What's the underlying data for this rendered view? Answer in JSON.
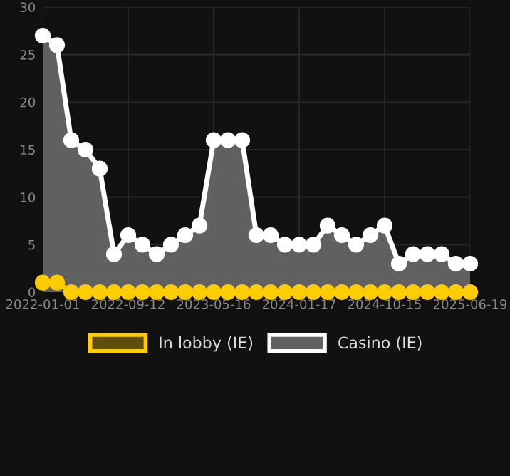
{
  "chart_data": {
    "type": "area",
    "categories": [
      "2022-01-01",
      null,
      null,
      null,
      null,
      null,
      "2022-09-12",
      null,
      null,
      null,
      null,
      null,
      "2023-05-16",
      null,
      null,
      null,
      null,
      null,
      "2024-01-17",
      null,
      null,
      null,
      null,
      null,
      "2024-10-15",
      null,
      null,
      null,
      null,
      null,
      "2025-06-19"
    ],
    "series": [
      {
        "name": "In lobby (IE)",
        "color": "#ffcc00",
        "values": [
          1,
          1,
          0,
          0,
          0,
          0,
          0,
          0,
          0,
          0,
          0,
          0,
          0,
          0,
          0,
          0,
          0,
          0,
          0,
          0,
          0,
          0,
          0,
          0,
          0,
          0,
          0,
          0,
          0,
          0,
          0
        ]
      },
      {
        "name": "Casino (IE)",
        "color": "#ffffff",
        "values": [
          27,
          26,
          16,
          15,
          13,
          4,
          6,
          5,
          4,
          5,
          6,
          7,
          16,
          16,
          16,
          6,
          6,
          5,
          5,
          5,
          7,
          6,
          5,
          6,
          7,
          3,
          4,
          4,
          4,
          3,
          3
        ]
      }
    ],
    "ylim": [
      0,
      30
    ],
    "yticks": [
      0,
      5,
      10,
      15,
      20,
      25,
      30
    ],
    "grid": true,
    "legend": "bottom",
    "marker": "circle"
  }
}
